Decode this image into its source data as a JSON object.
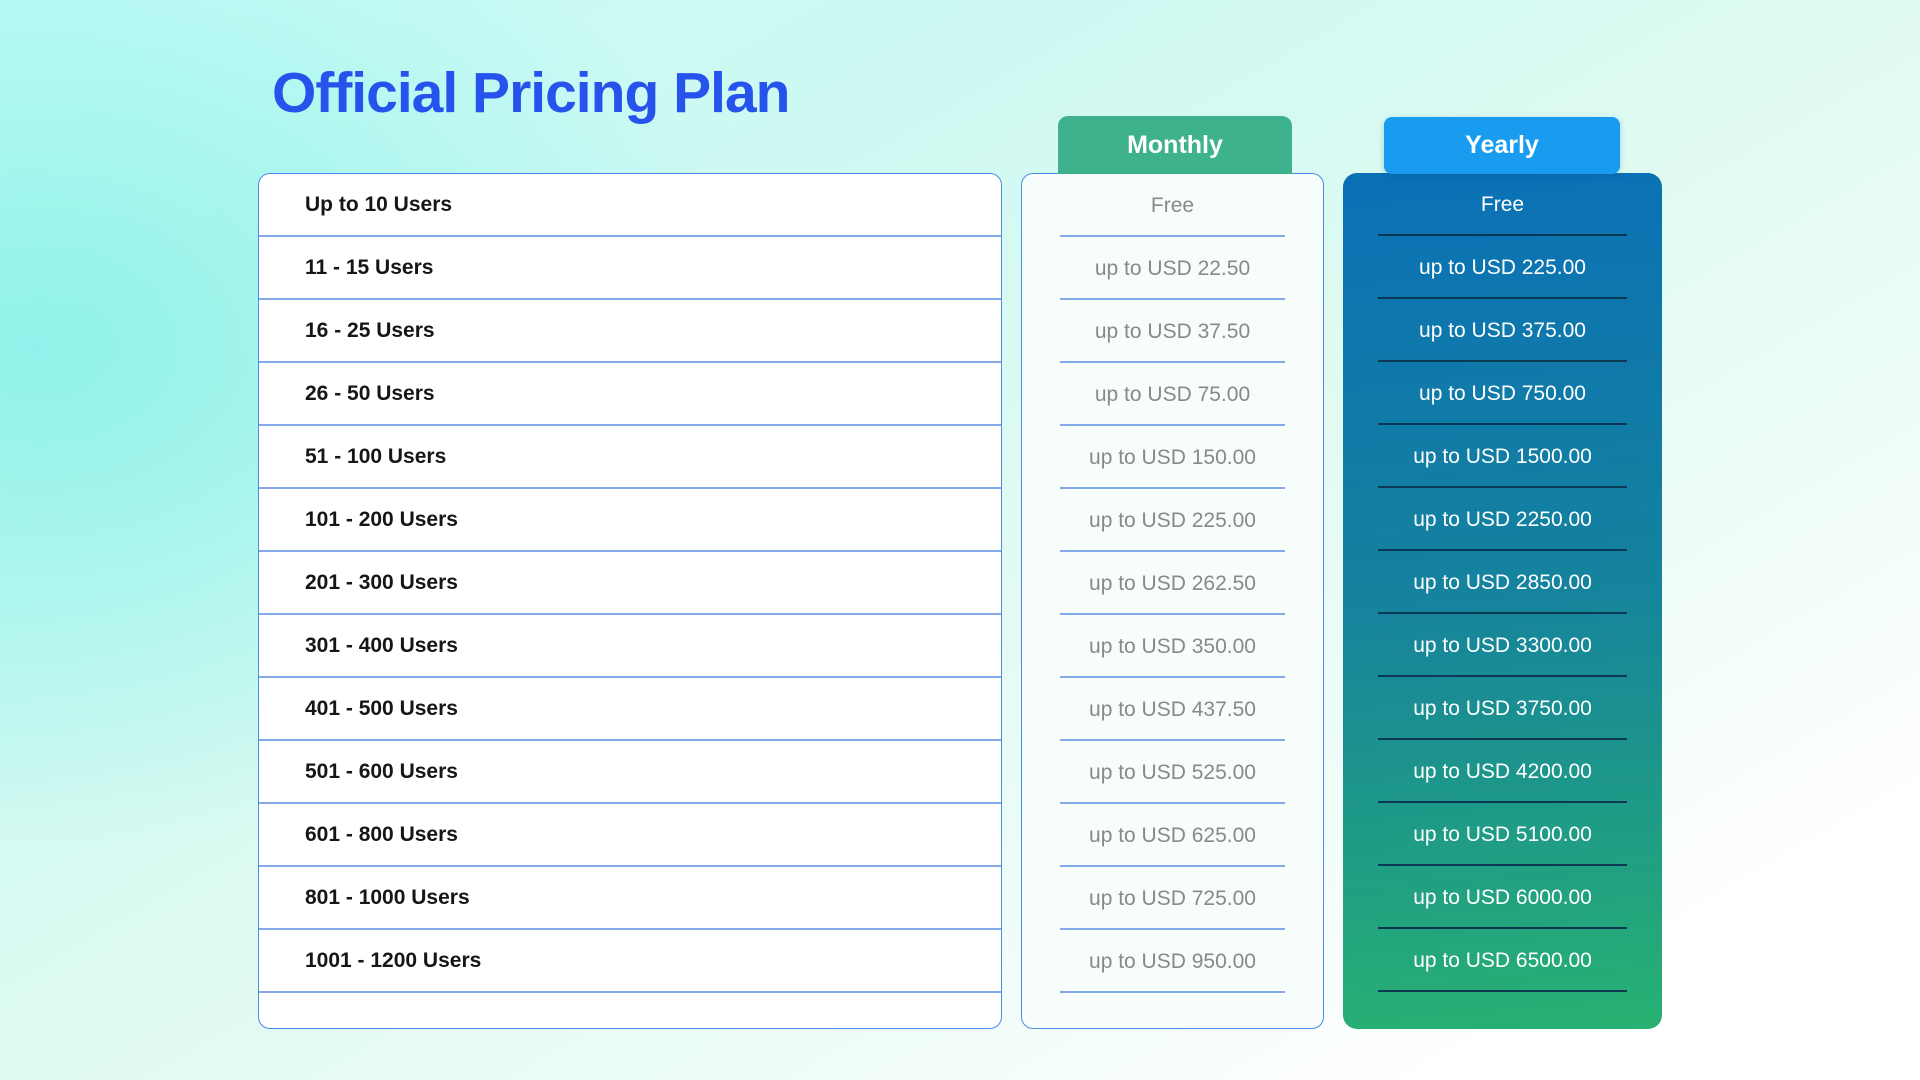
{
  "page": {
    "title": "Official Pricing Plan"
  },
  "colors": {
    "title_blue": "#2653ec",
    "panel_border": "#4a8ce8",
    "divider_light": "#84a9e8",
    "divider_dark": "#0c3854",
    "monthly_green": "#3eb28c",
    "yearly_blue": "#199bf0",
    "yearly_gradient_top": "#0a70b6",
    "yearly_gradient_bottom": "#28b171"
  },
  "users_column": {
    "rows": [
      "Up to 10 Users",
      "11 - 15 Users",
      "16 - 25 Users",
      "26 - 50 Users",
      "51 - 100 Users",
      "101 - 200 Users",
      "201 - 300 Users",
      "301 - 400 Users",
      "401 - 500 Users",
      "501 - 600 Users",
      "601 - 800 Users",
      "801 - 1000 Users",
      "1001 - 1200 Users"
    ]
  },
  "monthly_column": {
    "header": "Monthly",
    "rows": [
      "Free",
      "up to USD 22.50",
      "up to USD 37.50",
      "up to USD 75.00",
      "up to USD 150.00",
      "up to USD 225.00",
      "up to USD 262.50",
      "up to USD 350.00",
      "up to USD 437.50",
      "up to USD 525.00",
      "up to USD 625.00",
      "up to USD 725.00",
      "up to USD 950.00"
    ]
  },
  "yearly_column": {
    "header": "Yearly",
    "rows": [
      "Free",
      "up to USD 225.00",
      "up to USD 375.00",
      "up to USD 750.00",
      "up to USD 1500.00",
      "up to USD 2250.00",
      "up to USD 2850.00",
      "up to USD 3300.00",
      "up to USD 3750.00",
      "up to USD 4200.00",
      "up to USD 5100.00",
      "up to USD 6000.00",
      "up to USD 6500.00"
    ]
  }
}
